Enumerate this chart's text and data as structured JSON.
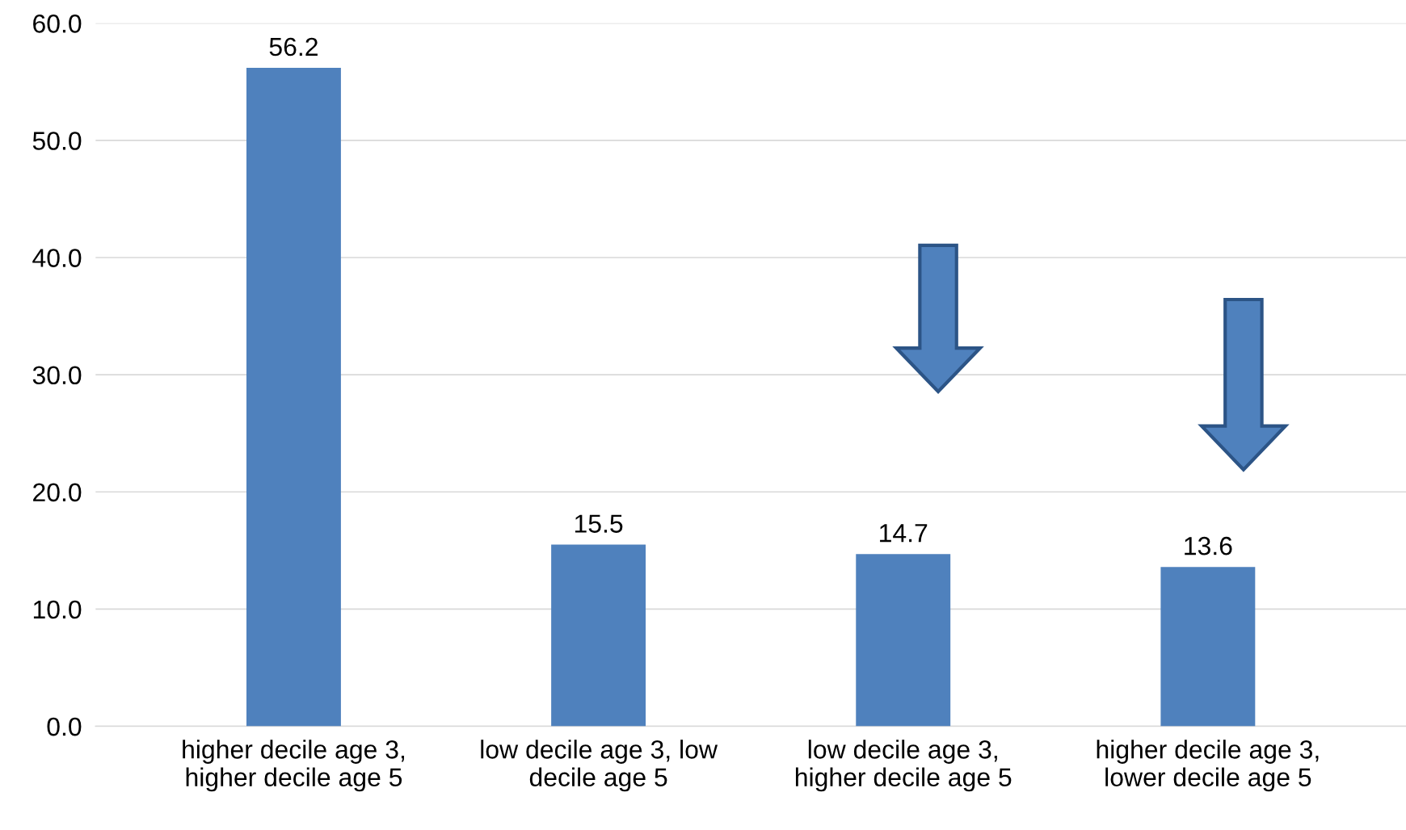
{
  "chart_data": {
    "type": "bar",
    "categories": [
      "higher decile age 3,\nhigher decile age 5",
      "low decile age 3, low\ndecile age 5",
      "low decile age 3,\nhigher decile age 5",
      "higher decile age 3,\nlower decile age 5"
    ],
    "values": [
      56.2,
      15.5,
      14.7,
      13.6
    ],
    "color": "#4f81bd",
    "ylim": [
      0,
      60
    ],
    "yticks": [
      {
        "value": 0,
        "label": "0.0"
      },
      {
        "value": 10,
        "label": "10.0"
      },
      {
        "value": 20,
        "label": "20.0"
      },
      {
        "value": 30,
        "label": "30.0"
      },
      {
        "value": 40,
        "label": "40.0"
      },
      {
        "value": 50,
        "label": "50.0"
      },
      {
        "value": 60,
        "label": "60.0"
      }
    ],
    "grid": "y",
    "data_labels": true
  }
}
